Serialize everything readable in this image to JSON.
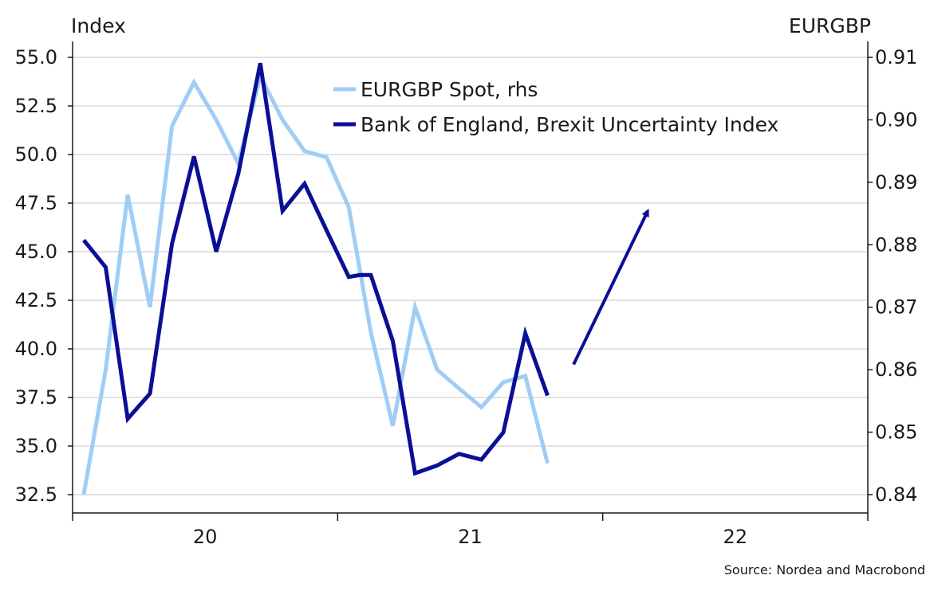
{
  "chart_data": {
    "type": "line",
    "left_axis_title": "Index",
    "right_axis_title": "EURGBP",
    "source": "Source: Nordea and Macrobond",
    "x_range": [
      2019.5,
      2022.5
    ],
    "x_ticks": [
      {
        "label": "20",
        "value": 2020.0
      },
      {
        "label": "21",
        "value": 2021.0
      },
      {
        "label": "22",
        "value": 2022.0
      }
    ],
    "x_separators": [
      2019.5,
      2020.5,
      2021.5,
      2022.5
    ],
    "left_axis": {
      "range": [
        32.5,
        55.0
      ],
      "ticks": [
        "32.5",
        "35.0",
        "37.5",
        "40.0",
        "42.5",
        "45.0",
        "47.5",
        "50.0",
        "52.5",
        "55.0"
      ]
    },
    "right_axis": {
      "range": [
        0.84,
        0.91
      ],
      "ticks": [
        "0.84",
        "0.85",
        "0.86",
        "0.87",
        "0.88",
        "0.89",
        "0.90",
        "0.91"
      ]
    },
    "grid": "horizontal",
    "legend_position": "top-center",
    "series": [
      {
        "name": "EURGBP Spot, rhs",
        "axis": "right",
        "color": "#9fcdf5",
        "x": [
          2019.542,
          2019.625,
          2019.708,
          2019.792,
          2019.875,
          2019.958,
          2020.042,
          2020.125,
          2020.208,
          2020.292,
          2020.375,
          2020.458,
          2020.542,
          2020.625,
          2020.708,
          2020.792,
          2020.875,
          2020.958,
          2021.042,
          2021.125,
          2021.208,
          2021.292
        ],
        "values": [
          0.84,
          0.86,
          0.888,
          0.87,
          0.899,
          0.906,
          0.9,
          0.893,
          0.907,
          0.9,
          0.895,
          0.894,
          0.886,
          0.866,
          0.851,
          0.87,
          0.86,
          0.857,
          0.854,
          0.858,
          0.859,
          0.845
        ]
      },
      {
        "name": "Bank of England, Brexit Uncertainty Index",
        "axis": "left",
        "color": "#0a0f96",
        "x": [
          2019.542,
          2019.625,
          2019.708,
          2019.792,
          2019.875,
          2019.958,
          2020.042,
          2020.125,
          2020.208,
          2020.292,
          2020.375,
          2020.458,
          2020.542,
          2020.583,
          2020.625,
          2020.708,
          2020.792,
          2020.875,
          2020.958,
          2021.042,
          2021.125,
          2021.208,
          2021.292
        ],
        "values": [
          45.6,
          44.2,
          36.4,
          37.7,
          45.4,
          49.9,
          45.0,
          49.0,
          54.7,
          47.1,
          48.5,
          46.1,
          43.7,
          43.8,
          43.8,
          40.4,
          33.6,
          34.0,
          34.6,
          34.3,
          35.7,
          40.8,
          37.6
        ]
      }
    ],
    "annotations": [
      {
        "type": "arrow",
        "color": "#0a0f96",
        "x": [
          2021.39,
          2021.67
        ],
        "y": [
          39.2,
          47.1
        ],
        "axis": "left"
      }
    ]
  }
}
